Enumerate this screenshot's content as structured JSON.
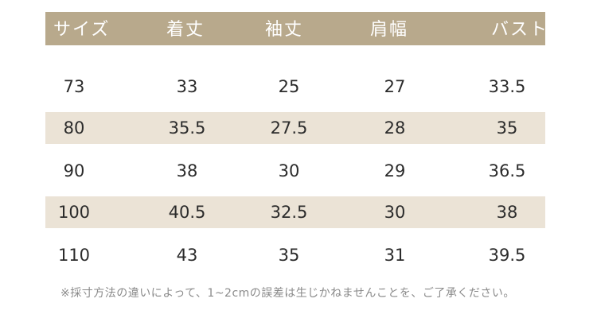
{
  "headers": [
    "サイズ",
    "着丈",
    "袖丈",
    "肩幅",
    "バスト"
  ],
  "rows": [
    [
      "73",
      "33",
      "25",
      "27",
      "33.5"
    ],
    [
      "80",
      "35.5",
      "27.5",
      "28",
      "35"
    ],
    [
      "90",
      "38",
      "30",
      "29",
      "36.5"
    ],
    [
      "100",
      "40.5",
      "32.5",
      "30",
      "38"
    ],
    [
      "110",
      "43",
      "35",
      "31",
      "39.5"
    ]
  ],
  "note": "※採寸方法の違いによって、1~2cmの誤差は生じかねませんことを、ご了承ください。",
  "colors": {
    "header_bg": "#b8a98c",
    "stripe_bg": "#ebe3d6",
    "text": "#2b2b2b"
  }
}
